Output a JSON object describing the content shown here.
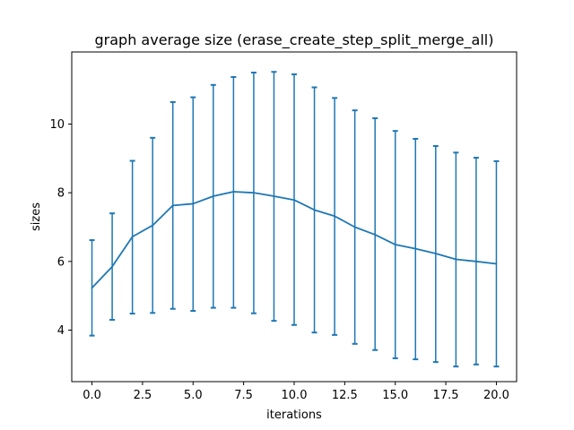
{
  "chart_data": {
    "type": "line",
    "title": "graph average size (erase_create_step_split_merge_all)",
    "xlabel": "iterations",
    "ylabel": "sizes",
    "xlim": [
      -1.0,
      21.0
    ],
    "ylim": [
      2.5,
      12.1
    ],
    "xticks": [
      0.0,
      2.5,
      5.0,
      7.5,
      10.0,
      12.5,
      15.0,
      17.5,
      20.0
    ],
    "xtick_labels": [
      "0.0",
      "2.5",
      "5.0",
      "7.5",
      "10.0",
      "12.5",
      "15.0",
      "17.5",
      "20.0"
    ],
    "yticks": [
      4,
      6,
      8,
      10
    ],
    "ytick_labels": [
      "4",
      "6",
      "8",
      "10"
    ],
    "grid": false,
    "series": [
      {
        "color": "#1f77b4",
        "x": [
          0,
          1,
          2,
          3,
          4,
          5,
          6,
          7,
          8,
          9,
          10,
          11,
          12,
          13,
          14,
          15,
          16,
          17,
          18,
          19,
          20
        ],
        "y": [
          5.23,
          5.85,
          6.72,
          7.05,
          7.63,
          7.68,
          7.9,
          8.03,
          8.0,
          7.9,
          7.79,
          7.5,
          7.32,
          7.0,
          6.78,
          6.49,
          6.37,
          6.23,
          6.06,
          6.0,
          5.93
        ],
        "err_low": [
          3.84,
          4.3,
          4.48,
          4.5,
          4.62,
          4.56,
          4.65,
          4.65,
          4.49,
          4.27,
          4.15,
          3.93,
          3.86,
          3.6,
          3.42,
          3.18,
          3.15,
          3.07,
          2.94,
          3.0,
          2.94
        ],
        "err_high": [
          6.62,
          7.4,
          8.93,
          9.6,
          10.64,
          10.78,
          11.14,
          11.37,
          11.5,
          11.52,
          11.45,
          11.07,
          10.76,
          10.4,
          10.17,
          9.8,
          9.57,
          9.36,
          9.17,
          9.02,
          8.92
        ]
      }
    ]
  }
}
